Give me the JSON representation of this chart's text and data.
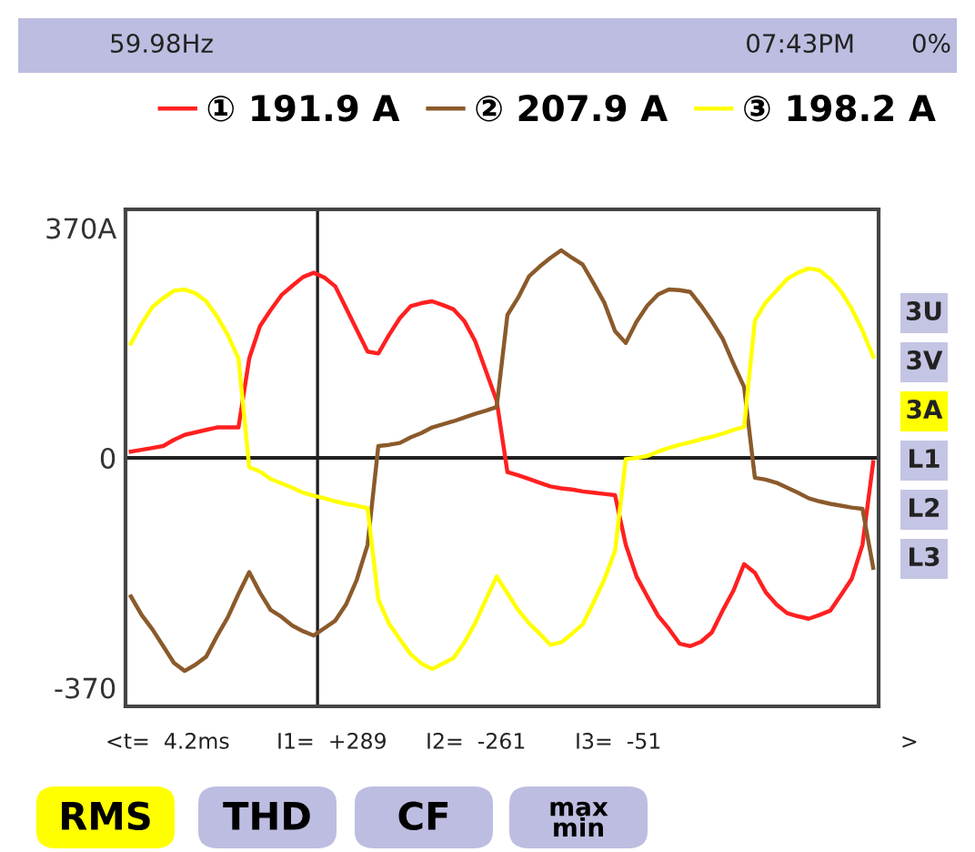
{
  "chart_data": {
    "type": "line",
    "categories": [
      null,
      null,
      null,
      null,
      null,
      null,
      null,
      null,
      null,
      null,
      null,
      null,
      null,
      null,
      null,
      null,
      null,
      null,
      null,
      null,
      null,
      null,
      null,
      null,
      null,
      null,
      null,
      null,
      null,
      null,
      null,
      null,
      null,
      null,
      null,
      null,
      null,
      null,
      null,
      null,
      null,
      null,
      null,
      null,
      null,
      null,
      null,
      null,
      null,
      null,
      null,
      null,
      null,
      null,
      null,
      null,
      null,
      null,
      null,
      null,
      null,
      null,
      null,
      null,
      null,
      null,
      null,
      null,
      null,
      null
    ],
    "series": [
      {
        "name": "① 191.9 A",
        "color": "#ff2020",
        "values": [
          10,
          13,
          16,
          19,
          29,
          37,
          41,
          45,
          49,
          49,
          49,
          160,
          212,
          238,
          262,
          277,
          291,
          298,
          290,
          276,
          241,
          206,
          171,
          168,
          198,
          225,
          244,
          249,
          252,
          246,
          239,
          220,
          188,
          140,
          92,
          -23,
          -28,
          -34,
          -40,
          -46,
          -49,
          -51,
          -54,
          -56,
          -58,
          -60,
          -140,
          -191,
          -223,
          -254,
          -275,
          -299,
          -303,
          -296,
          -281,
          -246,
          -214,
          -171,
          -185,
          -216,
          -236,
          -250,
          -255,
          -259,
          -253,
          -246,
          -221,
          -195,
          -140,
          -7
        ]
      },
      {
        "name": "② 207.9 A",
        "color": "#8b5a2b",
        "values": [
          -223,
          -253,
          -276,
          -303,
          -330,
          -343,
          -333,
          -320,
          -287,
          -257,
          -219,
          -184,
          -217,
          -245,
          -256,
          -270,
          -279,
          -286,
          -274,
          -262,
          -236,
          -196,
          -140,
          19,
          21,
          24,
          33,
          40,
          49,
          54,
          59,
          65,
          71,
          76,
          82,
          230,
          258,
          292,
          308,
          322,
          334,
          322,
          311,
          281,
          250,
          204,
          185,
          219,
          245,
          263,
          271,
          270,
          267,
          245,
          220,
          192,
          152,
          114,
          -32,
          -35,
          -40,
          -48,
          -56,
          -65,
          -70,
          -74,
          -77,
          -80,
          -82,
          -177
        ]
      },
      {
        "name": "③ 198.2 A",
        "color": "#ffff00",
        "values": [
          184,
          216,
          243,
          257,
          269,
          271,
          265,
          252,
          228,
          198,
          160,
          -15,
          -22,
          -34,
          -41,
          -48,
          -56,
          -61,
          -65,
          -70,
          -74,
          -77,
          -81,
          -228,
          -267,
          -292,
          -316,
          -331,
          -340,
          -331,
          -322,
          -297,
          -266,
          -228,
          -191,
          -218,
          -245,
          -266,
          -283,
          -301,
          -297,
          -283,
          -268,
          -233,
          -196,
          -150,
          -2,
          0,
          3,
          10,
          16,
          21,
          25,
          30,
          34,
          39,
          45,
          50,
          221,
          250,
          269,
          288,
          298,
          305,
          302,
          288,
          268,
          240,
          205,
          163
        ]
      }
    ],
    "ylim": [
      -400,
      400
    ],
    "yticks": [
      {
        "value": 370,
        "label": "370A"
      },
      0,
      -370
    ],
    "tick_labels": "y",
    "grid": false,
    "legend": "top right",
    "marker": "none",
    "line_style": "solid",
    "ref_lines": [
      {
        "axis": "y",
        "value": 0,
        "color": "#202020"
      }
    ],
    "annotations": [
      "59.98Hz",
      "07:43PM",
      "0%",
      "<t=  4.2ms",
      "I1=  +289",
      "I2=  -261",
      "I3=  -51",
      ">",
      "RMS",
      "THD",
      "CF",
      "max\nmin",
      "3U",
      "3V",
      "3A",
      "L1",
      "L2",
      "L3"
    ]
  }
}
